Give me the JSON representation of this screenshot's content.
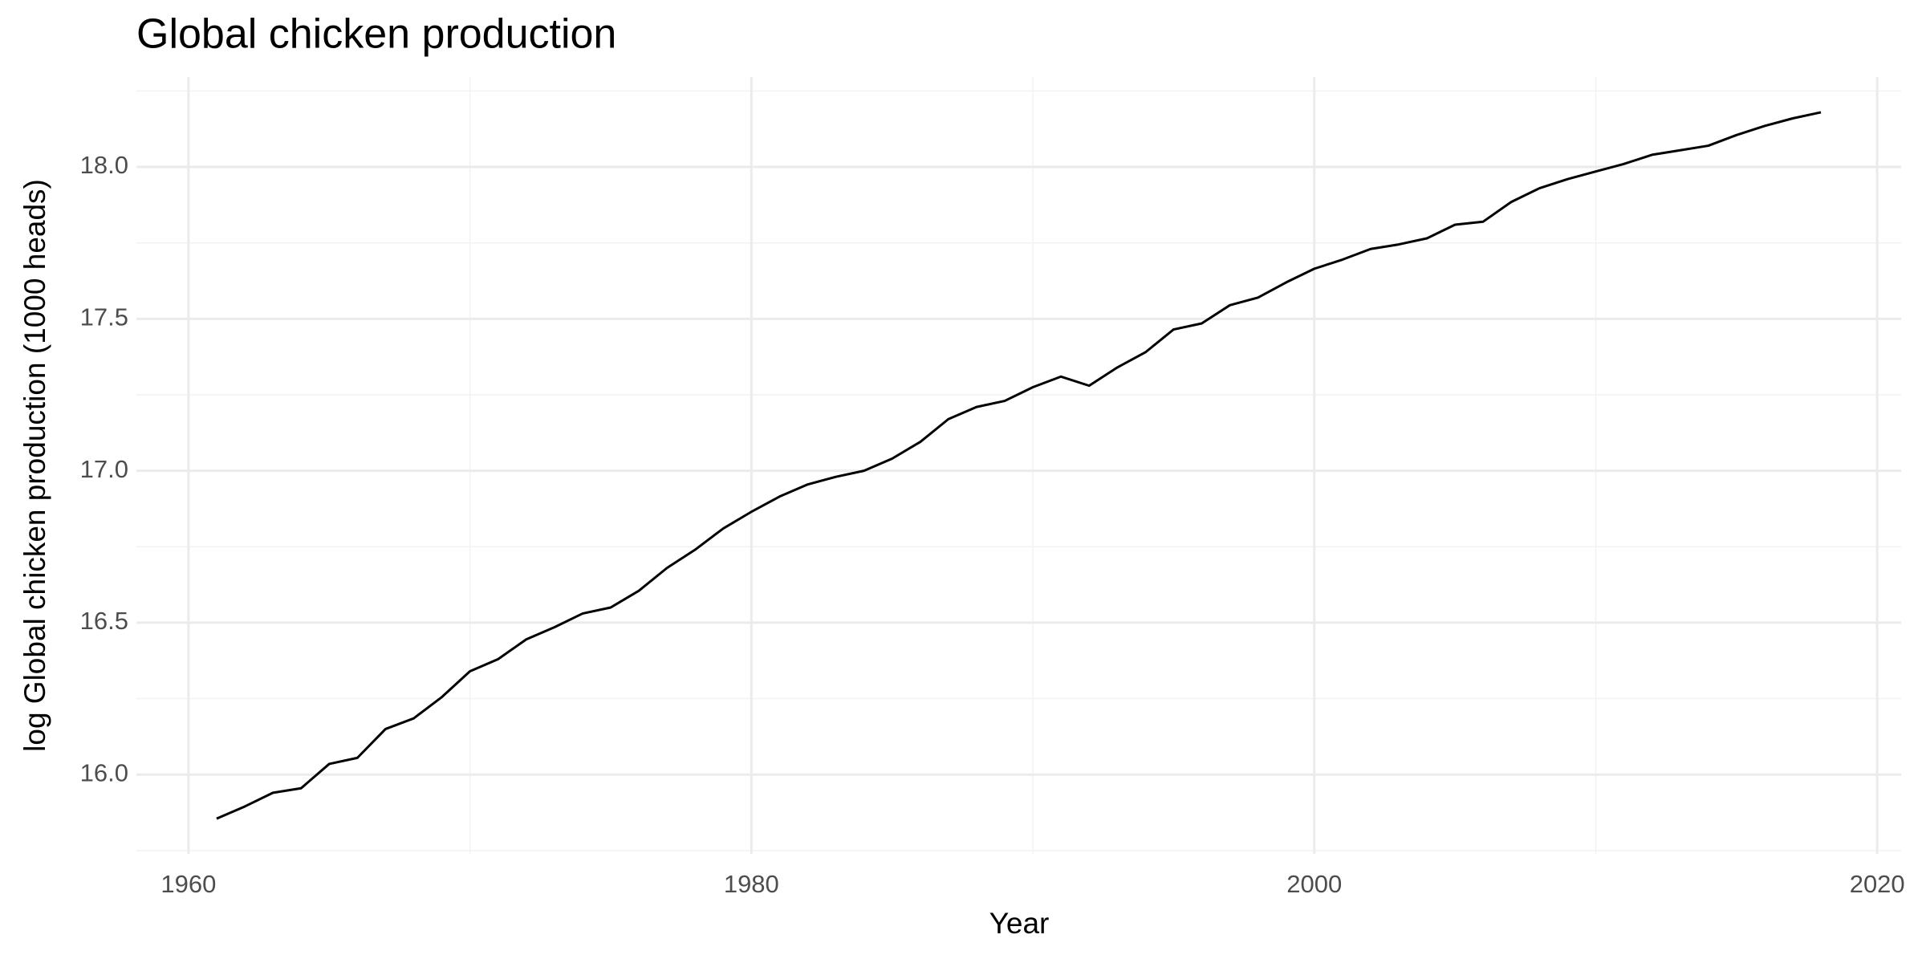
{
  "chart_data": {
    "type": "line",
    "title": "Global chicken production",
    "x_label": "Year",
    "y_label": "log Global chicken production (1000 heads)",
    "x": [
      1961,
      1962,
      1963,
      1964,
      1965,
      1966,
      1967,
      1968,
      1969,
      1970,
      1971,
      1972,
      1973,
      1974,
      1975,
      1976,
      1977,
      1978,
      1979,
      1980,
      1981,
      1982,
      1983,
      1984,
      1985,
      1986,
      1987,
      1988,
      1989,
      1990,
      1991,
      1992,
      1993,
      1994,
      1995,
      1996,
      1997,
      1998,
      1999,
      2000,
      2001,
      2002,
      2003,
      2004,
      2005,
      2006,
      2007,
      2008,
      2009,
      2010,
      2011,
      2012,
      2013,
      2014,
      2015,
      2016,
      2017,
      2018
    ],
    "values": [
      15.855,
      15.895,
      15.94,
      15.955,
      16.035,
      16.055,
      16.15,
      16.185,
      16.255,
      16.34,
      16.38,
      16.445,
      16.485,
      16.53,
      16.55,
      16.605,
      16.68,
      16.74,
      16.81,
      16.865,
      16.915,
      16.955,
      16.98,
      17.0,
      17.04,
      17.095,
      17.17,
      17.21,
      17.23,
      17.275,
      17.31,
      17.28,
      17.34,
      17.39,
      17.465,
      17.485,
      17.545,
      17.57,
      17.62,
      17.665,
      17.695,
      17.73,
      17.745,
      17.765,
      17.81,
      17.82,
      17.885,
      17.93,
      17.96,
      17.985,
      18.01,
      18.04,
      18.055,
      18.07,
      18.105,
      18.135,
      18.16,
      18.18
    ],
    "color": "#000000",
    "xlim": [
      1958.15,
      2020.85
    ],
    "xticks": [
      1960,
      1980,
      2000,
      2020
    ],
    "ylim": [
      15.739,
      18.296
    ],
    "yticks": [
      {
        "value": 16,
        "label": "16.0"
      },
      16.5,
      {
        "value": 17,
        "label": "17.0"
      },
      17.5,
      {
        "value": 18,
        "label": "18.0"
      }
    ],
    "grid": true
  }
}
